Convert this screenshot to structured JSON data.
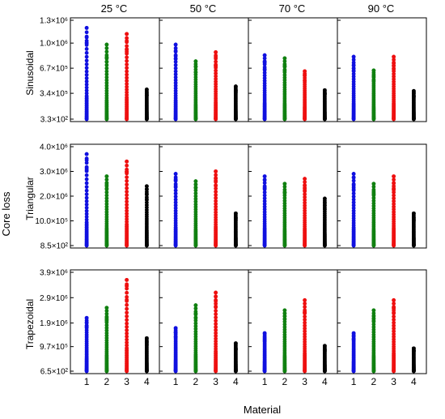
{
  "chart_data": {
    "type": "scatter",
    "ylabel": "Core loss",
    "xlabel": "Material",
    "columns": [
      "25 °C",
      "50 °C",
      "70 °C",
      "90 °C"
    ],
    "rows": [
      {
        "label": "Sinusoidal",
        "yticks": [
          "1.3×10⁶",
          "1.0×10⁶",
          "6.7×10⁵",
          "3.4×10⁵",
          "3.3×10²"
        ],
        "ylim": [
          330,
          1300000
        ],
        "ytick_values": [
          1300000,
          1000000,
          670000,
          340000,
          330
        ]
      },
      {
        "label": "Triangular",
        "yticks": [
          "4.0×10⁶",
          "3.0×10⁶",
          "2.0×10⁶",
          "10.0×10⁵",
          "8.5×10²"
        ],
        "ylim": [
          850,
          4000000
        ],
        "ytick_values": [
          4000000,
          3000000,
          2000000,
          1000000,
          850
        ]
      },
      {
        "label": "Trapezoidal",
        "yticks": [
          "3.9×10⁶",
          "2.9×10⁶",
          "1.9×10⁶",
          "9.7×10⁵",
          "6.5×10²"
        ],
        "ylim": [
          650,
          3900000
        ],
        "ytick_values": [
          3900000,
          2900000,
          1900000,
          970000,
          650
        ]
      }
    ],
    "x": [
      1,
      2,
      3,
      4
    ],
    "xtick_labels": [
      "1",
      "2",
      "3",
      "4"
    ],
    "material_colors": [
      "#1010e0",
      "#108010",
      "#ee1010",
      "#000000"
    ],
    "max_values": [
      [
        [
          1200000,
          980000,
          1120000,
          390000
        ],
        [
          980000,
          760000,
          880000,
          430000
        ],
        [
          840000,
          800000,
          630000,
          380000
        ],
        [
          820000,
          640000,
          820000,
          370000
        ]
      ],
      [
        [
          3700000,
          2800000,
          3400000,
          2400000
        ],
        [
          2900000,
          2600000,
          3000000,
          1300000
        ],
        [
          2800000,
          2500000,
          2700000,
          1900000
        ],
        [
          2900000,
          2500000,
          2800000,
          1300000
        ]
      ],
      [
        [
          2100000,
          2500000,
          3600000,
          1300000
        ],
        [
          1700000,
          2600000,
          3100000,
          1100000
        ],
        [
          1500000,
          2400000,
          2800000,
          1000000
        ],
        [
          1500000,
          2400000,
          2800000,
          900000
        ]
      ]
    ],
    "grid": false
  }
}
